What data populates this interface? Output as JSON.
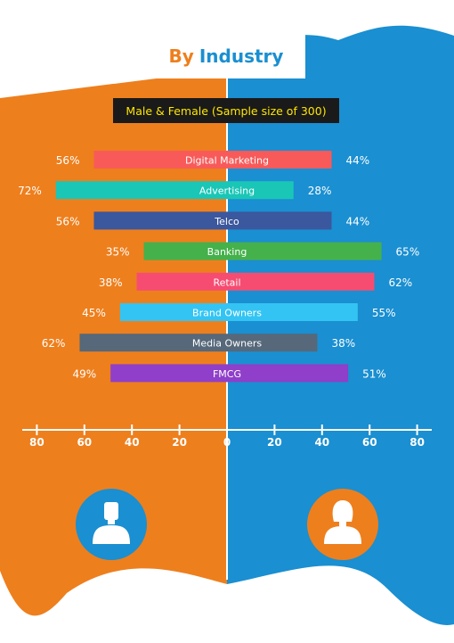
{
  "title": {
    "part1": "By",
    "part2": "Industry"
  },
  "subtitle": "Male & Female (Sample size of 300)",
  "colors": {
    "male_bg": "#ee7f1d",
    "female_bg": "#1a8fd1",
    "white": "#ffffff"
  },
  "icons": {
    "male": "male-user-icon",
    "female": "female-user-icon"
  },
  "chart_data": {
    "type": "bar",
    "orientation": "horizontal-diverging",
    "categories": [
      "Digital Marketing",
      "Advertising",
      "Telco",
      "Banking",
      "Retail",
      "Brand Owners",
      "Media Owners",
      "FMCG"
    ],
    "series": [
      {
        "values": [
          56,
          72,
          56,
          35,
          38,
          45,
          62,
          49
        ]
      },
      {
        "values": [
          44,
          28,
          44,
          65,
          62,
          55,
          38,
          51
        ]
      }
    ],
    "value_labels_left": [
      "56%",
      "72%",
      "56%",
      "35%",
      "38%",
      "45%",
      "62%",
      "49%"
    ],
    "value_labels_right": [
      "44%",
      "28%",
      "44%",
      "65%",
      "62%",
      "55%",
      "38%",
      "51%"
    ],
    "bar_colors": [
      "#f85a5a",
      "#1ac6b6",
      "#3b579d",
      "#45b14b",
      "#f64c72",
      "#33c4f3",
      "#56687a",
      "#8f3fc9"
    ],
    "x_ticks": [
      80,
      60,
      40,
      20,
      0,
      20,
      40,
      60,
      80
    ],
    "xlim": [
      -80,
      80
    ]
  }
}
